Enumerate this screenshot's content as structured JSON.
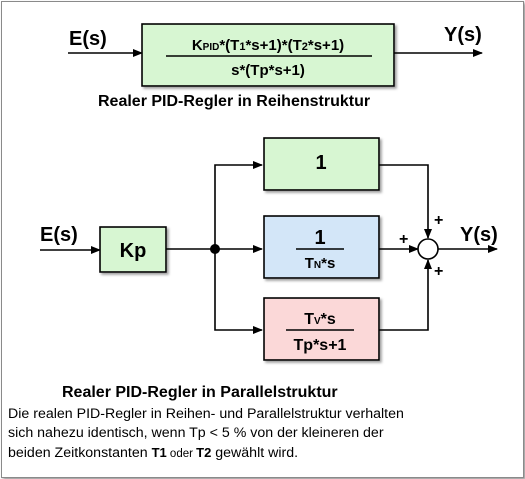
{
  "series": {
    "input": "E(s)",
    "output": "Y(s)",
    "numerator": "KPID*(T1*s+1)*(T2*s+1)",
    "numerator_parts": [
      "K",
      "PID",
      "*(T",
      "1",
      "*s+1)*(T",
      "2",
      "*s+1)"
    ],
    "denominator": "s*(Tp*s+1)",
    "caption": "Realer PID-Regler in Reihenstruktur"
  },
  "parallel": {
    "input": "E(s)",
    "output": "Y(s)",
    "gain": "Kp",
    "p_block": "1",
    "i_num": "1",
    "i_den": "TN*s",
    "i_den_parts": [
      "T",
      "N",
      "*s"
    ],
    "d_num": "Tv*s",
    "d_num_parts": [
      "T",
      "V",
      "*s"
    ],
    "d_den": "Tp*s+1",
    "sign_top": "+",
    "sign_mid": "+",
    "sign_bottom": "+",
    "caption": "Realer PID-Regler in Parallelstruktur"
  },
  "note": {
    "line1": "Die realen PID-Regler in Reihen- und Parallelstruktur verhalten",
    "line2": "sich nahezu identisch, wenn Tp <  5 % von der kleineren der",
    "line3_a": "beiden Zeitkonstanten ",
    "t1": "T1",
    "or": " oder ",
    "t2": "T2",
    "line3_b": " gewählt wird."
  },
  "colors": {
    "series_block": "#d7f6d2",
    "p_block": "#d7f6d2",
    "gain_block": "#d7f6d2",
    "i_block": "#d3e6f8",
    "d_block": "#fbd8d8"
  }
}
